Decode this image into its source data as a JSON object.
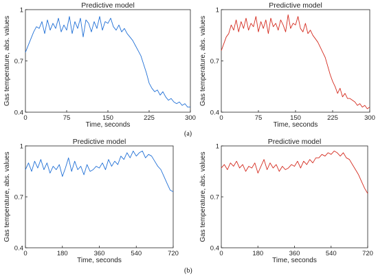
{
  "figure": {
    "label_a": "(a)",
    "label_b": "(b)"
  },
  "chart_data": [
    {
      "type": "line",
      "title": "Predictive model",
      "xlabel": "Time, seconds",
      "ylabel": "Gas temperature, abs. values",
      "xlim": [
        0,
        300
      ],
      "ylim": [
        0.4,
        1.0
      ],
      "xticks": [
        "0",
        "75",
        "150",
        "225",
        "300"
      ],
      "yticks": [
        "0.4",
        "0.7",
        "1"
      ],
      "color": "#1f6fd6",
      "series": [
        {
          "x": [
            0,
            5,
            10,
            15,
            20,
            25,
            30,
            35,
            40,
            45,
            50,
            55,
            60,
            65,
            70,
            75,
            80,
            85,
            90,
            95,
            100,
            105,
            110,
            115,
            120,
            125,
            130,
            135,
            140,
            145,
            150,
            155,
            160,
            165,
            170,
            175,
            180,
            185,
            190,
            195,
            200,
            205,
            210,
            215,
            220,
            225,
            230,
            235,
            240,
            245,
            250,
            255,
            260,
            265,
            270,
            275,
            280,
            285,
            290,
            295,
            300
          ],
          "y": [
            0.75,
            0.79,
            0.83,
            0.87,
            0.9,
            0.89,
            0.93,
            0.86,
            0.94,
            0.88,
            0.92,
            0.89,
            0.95,
            0.87,
            0.91,
            0.88,
            0.96,
            0.86,
            0.93,
            0.89,
            0.95,
            0.84,
            0.94,
            0.92,
            0.87,
            0.93,
            0.89,
            0.96,
            0.88,
            0.93,
            0.92,
            0.95,
            0.9,
            0.88,
            0.91,
            0.87,
            0.89,
            0.86,
            0.84,
            0.82,
            0.79,
            0.76,
            0.73,
            0.68,
            0.63,
            0.57,
            0.54,
            0.52,
            0.53,
            0.5,
            0.52,
            0.49,
            0.47,
            0.48,
            0.46,
            0.45,
            0.46,
            0.44,
            0.45,
            0.43,
            0.43
          ]
        }
      ]
    },
    {
      "type": "line",
      "title": "Predictive model",
      "xlabel": "Time, seconds",
      "ylabel": "Gas temperature, abs. values",
      "xlim": [
        0,
        300
      ],
      "ylim": [
        0.4,
        1.0
      ],
      "xticks": [
        "0",
        "75",
        "150",
        "225",
        "300"
      ],
      "yticks": [
        "0.4",
        "0.7",
        "1"
      ],
      "color": "#d42a1e",
      "series": [
        {
          "x": [
            0,
            5,
            10,
            15,
            20,
            25,
            30,
            35,
            40,
            45,
            50,
            55,
            60,
            65,
            70,
            75,
            80,
            85,
            90,
            95,
            100,
            105,
            110,
            115,
            120,
            125,
            130,
            135,
            140,
            145,
            150,
            155,
            160,
            165,
            170,
            175,
            180,
            185,
            190,
            195,
            200,
            205,
            210,
            215,
            220,
            225,
            230,
            235,
            240,
            245,
            250,
            255,
            260,
            265,
            270,
            275,
            280,
            285,
            290,
            295,
            300
          ],
          "y": [
            0.76,
            0.8,
            0.84,
            0.86,
            0.91,
            0.88,
            0.94,
            0.87,
            0.93,
            0.89,
            0.95,
            0.88,
            0.92,
            0.9,
            0.96,
            0.87,
            0.93,
            0.89,
            0.94,
            0.86,
            0.95,
            0.9,
            0.92,
            0.88,
            0.94,
            0.91,
            0.87,
            0.97,
            0.89,
            0.92,
            0.91,
            0.96,
            0.89,
            0.87,
            0.92,
            0.86,
            0.88,
            0.85,
            0.83,
            0.81,
            0.78,
            0.75,
            0.72,
            0.67,
            0.62,
            0.58,
            0.55,
            0.51,
            0.54,
            0.49,
            0.51,
            0.48,
            0.48,
            0.47,
            0.46,
            0.44,
            0.45,
            0.43,
            0.44,
            0.42,
            0.43
          ]
        }
      ]
    },
    {
      "type": "line",
      "title": "Predictive model",
      "xlabel": "Time, seconds",
      "ylabel": "Gas temperature, abs. values",
      "xlim": [
        0,
        720
      ],
      "ylim": [
        0.4,
        1.0
      ],
      "xticks": [
        "0",
        "180",
        "360",
        "540",
        "720"
      ],
      "yticks": [
        "0.4",
        "0.7",
        "1"
      ],
      "color": "#1f6fd6",
      "series": [
        {
          "x": [
            0,
            15,
            30,
            45,
            60,
            75,
            90,
            105,
            120,
            135,
            150,
            165,
            180,
            195,
            210,
            225,
            240,
            255,
            270,
            285,
            300,
            315,
            330,
            345,
            360,
            375,
            390,
            405,
            420,
            435,
            450,
            465,
            480,
            495,
            510,
            525,
            540,
            555,
            570,
            585,
            600,
            615,
            630,
            645,
            660,
            675,
            690,
            705,
            720
          ],
          "y": [
            0.86,
            0.9,
            0.85,
            0.91,
            0.87,
            0.92,
            0.86,
            0.9,
            0.84,
            0.88,
            0.86,
            0.89,
            0.82,
            0.87,
            0.93,
            0.85,
            0.91,
            0.86,
            0.88,
            0.83,
            0.89,
            0.85,
            0.86,
            0.88,
            0.87,
            0.9,
            0.86,
            0.92,
            0.88,
            0.91,
            0.89,
            0.94,
            0.92,
            0.96,
            0.93,
            0.97,
            0.94,
            0.96,
            0.97,
            0.93,
            0.95,
            0.94,
            0.91,
            0.88,
            0.86,
            0.82,
            0.78,
            0.74,
            0.73
          ]
        }
      ]
    },
    {
      "type": "line",
      "title": "Predictive model",
      "xlabel": "Time, seconds",
      "ylabel": "Gas temperature, abs. values",
      "xlim": [
        0,
        720
      ],
      "ylim": [
        0.4,
        1.0
      ],
      "xticks": [
        "0",
        "180",
        "360",
        "540",
        "720"
      ],
      "yticks": [
        "0.4",
        "0.7",
        "1"
      ],
      "color": "#d42a1e",
      "series": [
        {
          "x": [
            0,
            15,
            30,
            45,
            60,
            75,
            90,
            105,
            120,
            135,
            150,
            165,
            180,
            195,
            210,
            225,
            240,
            255,
            270,
            285,
            300,
            315,
            330,
            345,
            360,
            375,
            390,
            405,
            420,
            435,
            450,
            465,
            480,
            495,
            510,
            525,
            540,
            555,
            570,
            585,
            600,
            615,
            630,
            645,
            660,
            675,
            690,
            705,
            720
          ],
          "y": [
            0.87,
            0.89,
            0.86,
            0.9,
            0.88,
            0.91,
            0.87,
            0.89,
            0.85,
            0.88,
            0.87,
            0.9,
            0.84,
            0.88,
            0.92,
            0.86,
            0.9,
            0.87,
            0.89,
            0.85,
            0.88,
            0.86,
            0.87,
            0.89,
            0.88,
            0.91,
            0.87,
            0.91,
            0.89,
            0.92,
            0.9,
            0.93,
            0.93,
            0.95,
            0.94,
            0.96,
            0.95,
            0.97,
            0.96,
            0.94,
            0.96,
            0.93,
            0.92,
            0.89,
            0.86,
            0.83,
            0.79,
            0.75,
            0.72
          ]
        }
      ]
    }
  ]
}
